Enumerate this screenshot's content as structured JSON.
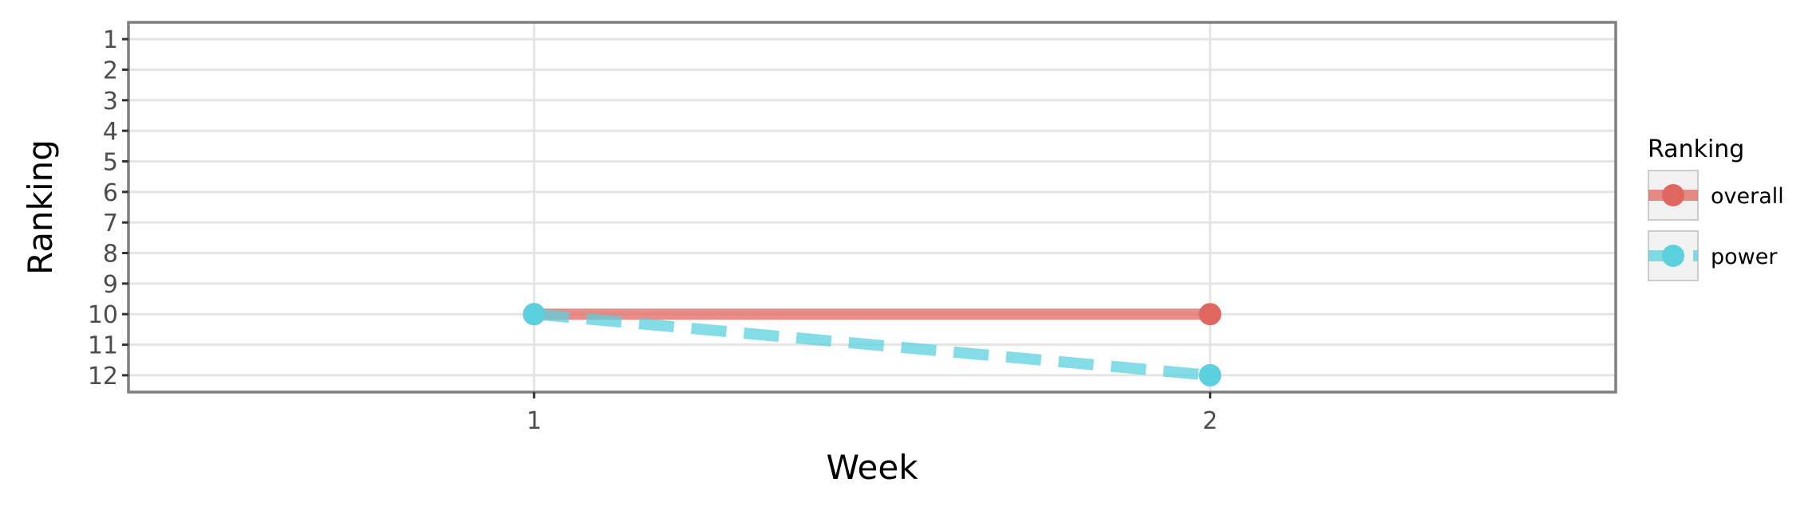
{
  "chart_data": {
    "type": "line",
    "xlabel": "Week",
    "ylabel": "Ranking",
    "x": [
      1,
      2
    ],
    "xlim": [
      0.4,
      2.6
    ],
    "ylim": [
      12.55,
      0.45
    ],
    "y_reversed": true,
    "xticks": [
      1,
      2
    ],
    "yticks": [
      1,
      2,
      3,
      4,
      5,
      6,
      7,
      8,
      9,
      10,
      11,
      12
    ],
    "grid": true,
    "legend": {
      "title": "Ranking",
      "position": "right"
    },
    "series": [
      {
        "name": "overall",
        "values": [
          10,
          10
        ],
        "color": "#e06660",
        "linestyle": "solid"
      },
      {
        "name": "power",
        "values": [
          10,
          12
        ],
        "color": "#5bd0de",
        "linestyle": "dashed"
      }
    ]
  }
}
